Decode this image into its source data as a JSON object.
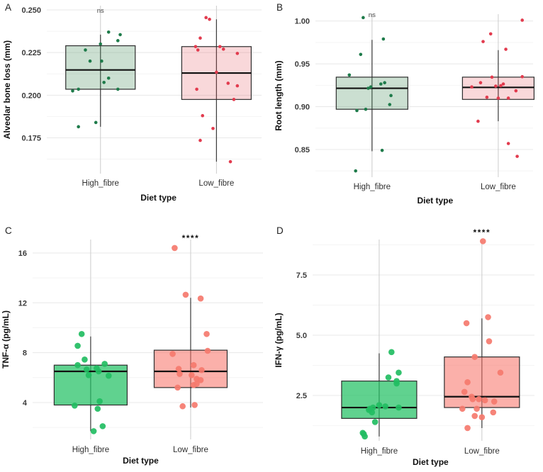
{
  "figure": {
    "background": "#ffffff",
    "colors": {
      "grid_major": "#e8e8e8",
      "grid_minor": "#f4f4f4",
      "grid_vertical": "#cccccc",
      "whisker": "#3c3c3c",
      "box_stroke": "#2e2e2e",
      "median": "#111111",
      "green_pale_fill": "rgba(84,150,102,0.30)",
      "green_dark_point": "#1e7b4a",
      "pink_pale_fill": "rgba(226,58,72,0.20)",
      "red_point": "#e23b4e",
      "green_vivid_fill": "rgba(35,192,100,0.72)",
      "green_vivid_point": "#22bd62",
      "salmon_fill": "rgba(247,112,100,0.55)",
      "salmon_point": "#f5796e"
    }
  },
  "chart_data": {
    "type": "boxplot-jitter",
    "xlabel": "Diet type",
    "categories": [
      "High_fibre",
      "Low_fibre"
    ],
    "panels": [
      {
        "id": "A",
        "label": "A",
        "ylabel": "Alveolar bone loss (mm)",
        "xlabel": "Diet type",
        "categories": [
          "High_fibre",
          "Low_fibre"
        ],
        "ylim": [
          0.154,
          0.2525
        ],
        "yticks": [
          0.25,
          0.225,
          0.2,
          0.175
        ],
        "ytick_labels": [
          "0.250",
          "0.225",
          "0.200",
          "0.175"
        ],
        "significance": {
          "text": "ns",
          "category_index": 0
        },
        "groups": [
          {
            "name": "High_fibre",
            "fill": "rgba(84,150,102,0.30)",
            "point_color": "#1e7b4a",
            "box": {
              "q1": 0.2035,
              "median": 0.2148,
              "q3": 0.229,
              "whisker_low": 0.1815,
              "whisker_high": 0.2355
            },
            "points": [
              [
                0.07,
                0.237
              ],
              [
                0.17,
                0.2355
              ],
              [
                0.15,
                0.232
              ],
              [
                0.0,
                0.23
              ],
              [
                -0.13,
                0.2265
              ],
              [
                -0.09,
                0.22
              ],
              [
                0.01,
                0.22
              ],
              [
                0.07,
                0.21
              ],
              [
                0.03,
                0.2075
              ],
              [
                -0.24,
                0.2025
              ],
              [
                -0.19,
                0.2035
              ],
              [
                0.15,
                0.2035
              ],
              [
                -0.04,
                0.184
              ],
              [
                -0.19,
                0.1815
              ]
            ]
          },
          {
            "name": "Low_fibre",
            "fill": "rgba(226,58,72,0.20)",
            "point_color": "#e23b4e",
            "box": {
              "q1": 0.1975,
              "median": 0.213,
              "q3": 0.2285,
              "whisker_low": 0.161,
              "whisker_high": 0.2445
            },
            "points": [
              [
                -0.09,
                0.2455
              ],
              [
                -0.06,
                0.2445
              ],
              [
                -0.14,
                0.2335
              ],
              [
                -0.18,
                0.2285
              ],
              [
                -0.16,
                0.2265
              ],
              [
                0.03,
                0.2285
              ],
              [
                0.06,
                0.227
              ],
              [
                0.18,
                0.2245
              ],
              [
                0.0,
                0.2135
              ],
              [
                0.1,
                0.207
              ],
              [
                0.18,
                0.2055
              ],
              [
                -0.17,
                0.2035
              ],
              [
                0.15,
                0.1975
              ],
              [
                -0.12,
                0.188
              ],
              [
                -0.03,
                0.1805
              ],
              [
                -0.14,
                0.1735
              ],
              [
                0.12,
                0.161
              ]
            ]
          }
        ]
      },
      {
        "id": "B",
        "label": "B",
        "ylabel": "Root length (mm)",
        "xlabel": "Diet type",
        "categories": [
          "High_fibre",
          "Low_fibre"
        ],
        "ylim": [
          0.8177,
          1.008
        ],
        "yticks": [
          1.0,
          0.95,
          0.9,
          0.85
        ],
        "ytick_labels": [
          "1.00",
          "0.95",
          "0.90",
          "0.85"
        ],
        "significance": {
          "text": "ns",
          "category_index": 0
        },
        "groups": [
          {
            "name": "High_fibre",
            "fill": "rgba(84,150,102,0.30)",
            "point_color": "#1e7b4a",
            "box": {
              "q1": 0.897,
              "median": 0.9215,
              "q3": 0.9345,
              "whisker_low": 0.848,
              "whisker_high": 0.978
            },
            "points": [
              [
                -0.07,
                1.004
              ],
              [
                0.09,
                0.979
              ],
              [
                -0.09,
                0.961
              ],
              [
                -0.18,
                0.937
              ],
              [
                0.1,
                0.928
              ],
              [
                0.07,
                0.9265
              ],
              [
                -0.01,
                0.923
              ],
              [
                -0.03,
                0.9215
              ],
              [
                0.15,
                0.913
              ],
              [
                0.14,
                0.9025
              ],
              [
                -0.05,
                0.897
              ],
              [
                -0.12,
                0.8955
              ],
              [
                0.08,
                0.849
              ],
              [
                -0.13,
                0.825
              ]
            ]
          },
          {
            "name": "Low_fibre",
            "fill": "rgba(226,58,72,0.20)",
            "point_color": "#e23b4e",
            "box": {
              "q1": 0.9085,
              "median": 0.9225,
              "q3": 0.9345,
              "whisker_low": 0.883,
              "whisker_high": 0.966
            },
            "points": [
              [
                0.19,
                1.001
              ],
              [
                -0.06,
                0.985
              ],
              [
                -0.12,
                0.976
              ],
              [
                0.06,
                0.967
              ],
              [
                0.19,
                0.935
              ],
              [
                -0.05,
                0.9345
              ],
              [
                -0.14,
                0.928
              ],
              [
                0.04,
                0.9265
              ],
              [
                -0.02,
                0.924
              ],
              [
                0.02,
                0.9245
              ],
              [
                0.14,
                0.9185
              ],
              [
                -0.21,
                0.923
              ],
              [
                -0.09,
                0.911
              ],
              [
                0.0,
                0.91
              ],
              [
                0.08,
                0.91
              ],
              [
                -0.16,
                0.883
              ],
              [
                0.08,
                0.857
              ],
              [
                0.15,
                0.842
              ]
            ]
          }
        ]
      },
      {
        "id": "C",
        "label": "C",
        "ylabel": "TNF-α (pg/mL)",
        "xlabel": "Diet type",
        "categories": [
          "High_fibre",
          "Low_fibre"
        ],
        "ylim": [
          1.04,
          17.08
        ],
        "yticks": [
          16,
          12,
          8,
          4
        ],
        "ytick_labels": [
          "16",
          "12",
          "8",
          "4"
        ],
        "significance": {
          "text": "****",
          "category_index": 1
        },
        "groups": [
          {
            "name": "High_fibre",
            "fill": "rgba(35,192,100,0.72)",
            "point_color": "#22bd62",
            "box": {
              "q1": 3.8,
              "median": 6.5,
              "q3": 7.0,
              "whisker_low": 1.7,
              "whisker_high": 9.3
            },
            "points": [
              [
                -0.09,
                9.5
              ],
              [
                -0.13,
                8.55
              ],
              [
                -0.06,
                7.45
              ],
              [
                -0.13,
                7.0
              ],
              [
                0.14,
                7.1
              ],
              [
                -0.04,
                6.65
              ],
              [
                0.06,
                6.75
              ],
              [
                0.08,
                6.5
              ],
              [
                -0.02,
                6.2
              ],
              [
                0.18,
                6.15
              ],
              [
                0.09,
                4.1
              ],
              [
                -0.16,
                3.75
              ],
              [
                0.07,
                3.5
              ],
              [
                0.12,
                2.1
              ],
              [
                0.03,
                1.7
              ]
            ]
          },
          {
            "name": "Low_fibre",
            "fill": "rgba(247,112,100,0.55)",
            "point_color": "#f5796e",
            "box": {
              "q1": 5.2,
              "median": 6.5,
              "q3": 8.2,
              "whisker_low": 3.6,
              "whisker_high": 12.4
            },
            "points": [
              [
                -0.16,
                16.4
              ],
              [
                -0.05,
                12.65
              ],
              [
                0.1,
                12.35
              ],
              [
                0.16,
                9.5
              ],
              [
                0.17,
                8.15
              ],
              [
                -0.18,
                7.9
              ],
              [
                0.03,
                7.0
              ],
              [
                -0.12,
                6.7
              ],
              [
                0.11,
                6.6
              ],
              [
                -0.11,
                6.3
              ],
              [
                0.01,
                6.2
              ],
              [
                0.06,
                5.9
              ],
              [
                0.1,
                5.8
              ],
              [
                0.06,
                5.5
              ],
              [
                0.03,
                5.4
              ],
              [
                -0.13,
                5.2
              ],
              [
                -0.08,
                3.7
              ],
              [
                0.04,
                3.8
              ]
            ]
          }
        ]
      },
      {
        "id": "D",
        "label": "D",
        "ylabel": "IFN-γ (pg/mL)",
        "xlabel": "Diet type",
        "categories": [
          "High_fibre",
          "Low_fibre"
        ],
        "ylim": [
          0.62,
          8.97
        ],
        "yticks": [
          7.5,
          5.0,
          2.5
        ],
        "ytick_labels": [
          "7.5",
          "5.0",
          "2.5"
        ],
        "significance": {
          "text": "****",
          "category_index": 1
        },
        "groups": [
          {
            "name": "High_fibre",
            "fill": "rgba(35,192,100,0.72)",
            "point_color": "#22bd62",
            "box": {
              "q1": 1.55,
              "median": 2.0,
              "q3": 3.1,
              "whisker_low": 0.8,
              "whisker_high": 4.25
            },
            "points": [
              [
                0.12,
                4.3
              ],
              [
                0.19,
                3.45
              ],
              [
                0.17,
                3.1
              ],
              [
                0.09,
                3.25
              ],
              [
                0.17,
                3.0
              ],
              [
                -0.06,
                2.0
              ],
              [
                0.0,
                2.1
              ],
              [
                0.06,
                2.05
              ],
              [
                0.19,
                2.0
              ],
              [
                -0.1,
                1.9
              ],
              [
                -0.07,
                1.8
              ],
              [
                -0.09,
                1.95
              ],
              [
                -0.04,
                1.4
              ],
              [
                -0.16,
                0.95
              ],
              [
                -0.15,
                0.9
              ],
              [
                -0.14,
                0.8
              ]
            ]
          },
          {
            "name": "Low_fibre",
            "fill": "rgba(247,112,100,0.55)",
            "point_color": "#f5796e",
            "box": {
              "q1": 2.0,
              "median": 2.45,
              "q3": 4.1,
              "whisker_low": 1.15,
              "whisker_high": 5.7
            },
            "points": [
              [
                0.01,
                8.9
              ],
              [
                0.06,
                5.75
              ],
              [
                -0.15,
                5.5
              ],
              [
                0.07,
                4.75
              ],
              [
                -0.07,
                4.1
              ],
              [
                0.18,
                3.45
              ],
              [
                -0.14,
                3.05
              ],
              [
                -0.17,
                2.65
              ],
              [
                -0.1,
                2.45
              ],
              [
                -0.09,
                2.35
              ],
              [
                -0.03,
                2.35
              ],
              [
                0.03,
                2.3
              ],
              [
                0.12,
                2.25
              ],
              [
                -0.19,
                1.95
              ],
              [
                -0.05,
                1.95
              ],
              [
                -0.07,
                1.65
              ],
              [
                0.11,
                1.8
              ],
              [
                0.0,
                1.6
              ],
              [
                -0.14,
                1.15
              ]
            ]
          }
        ]
      }
    ]
  }
}
